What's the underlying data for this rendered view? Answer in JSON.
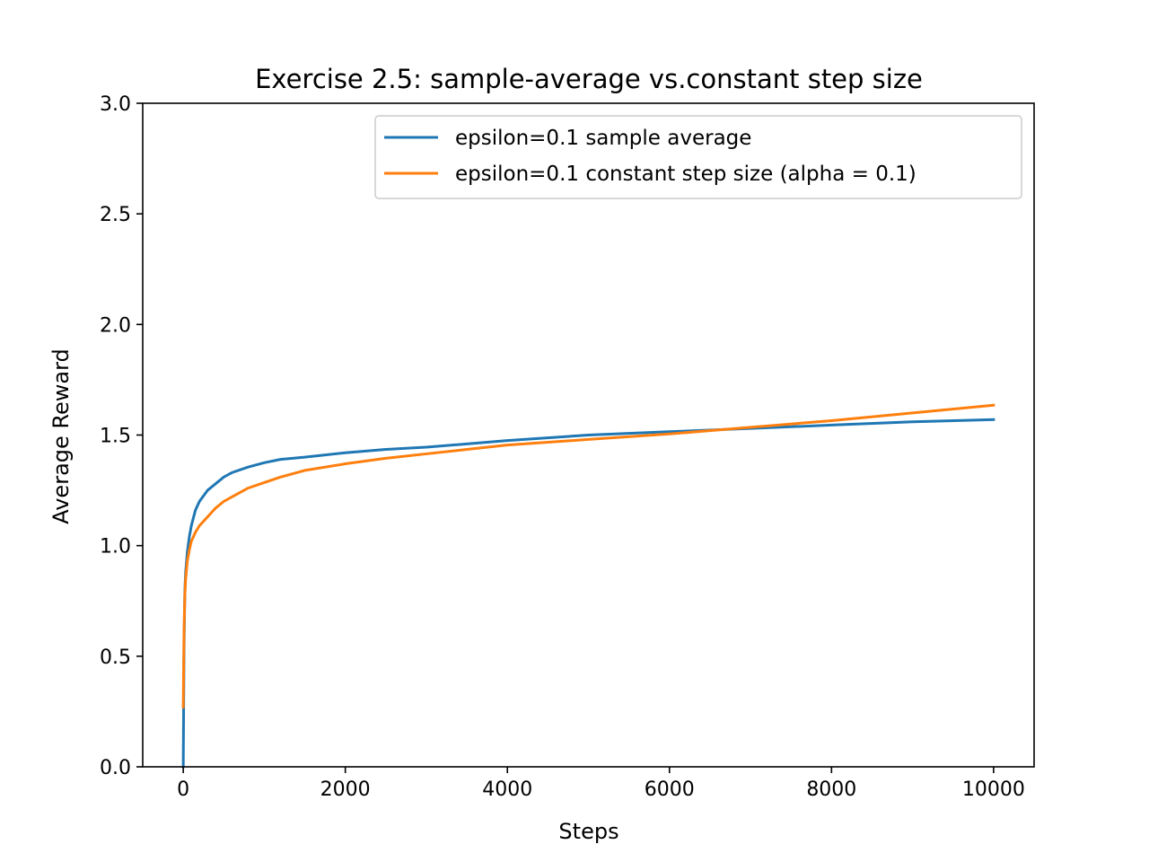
{
  "chart_data": {
    "type": "line",
    "title": "Exercise 2.5: sample-average vs.constant step size",
    "xlabel": "Steps",
    "ylabel": "Average Reward",
    "xlim": [
      -500,
      10500
    ],
    "ylim": [
      0,
      3
    ],
    "xticks": [
      0,
      2000,
      4000,
      6000,
      8000,
      10000
    ],
    "xtick_labels": [
      "0",
      "2000",
      "4000",
      "6000",
      "8000",
      "10000"
    ],
    "yticks": [
      0,
      0.5,
      1,
      1.5,
      2,
      2.5,
      3
    ],
    "ytick_labels": [
      "0.0",
      "0.5",
      "1.0",
      "1.5",
      "2.0",
      "2.5",
      "3.0"
    ],
    "grid": false,
    "legend_position": "upper right",
    "series": [
      {
        "name": "epsilon=0.1 sample average",
        "color": "#1f77b4",
        "x": [
          0,
          5,
          10,
          20,
          30,
          50,
          75,
          100,
          150,
          200,
          300,
          400,
          500,
          600,
          800,
          1000,
          1200,
          1500,
          2000,
          2500,
          3000,
          3500,
          4000,
          5000,
          6000,
          7000,
          8000,
          9000,
          10000
        ],
        "y": [
          0.0,
          0.27,
          0.55,
          0.8,
          0.88,
          0.97,
          1.04,
          1.09,
          1.16,
          1.2,
          1.25,
          1.28,
          1.31,
          1.33,
          1.355,
          1.375,
          1.39,
          1.4,
          1.42,
          1.435,
          1.445,
          1.46,
          1.475,
          1.5,
          1.515,
          1.53,
          1.545,
          1.56,
          1.57
        ]
      },
      {
        "name": "epsilon=0.1 constant step size (alpha = 0.1)",
        "color": "#ff7f0e",
        "x": [
          0,
          5,
          10,
          20,
          30,
          50,
          75,
          100,
          150,
          200,
          300,
          400,
          500,
          600,
          800,
          1000,
          1200,
          1500,
          2000,
          2500,
          3000,
          3500,
          4000,
          5000,
          6000,
          7000,
          8000,
          9000,
          10000
        ],
        "y": [
          0.27,
          0.45,
          0.62,
          0.78,
          0.85,
          0.93,
          0.98,
          1.02,
          1.06,
          1.09,
          1.13,
          1.17,
          1.2,
          1.22,
          1.26,
          1.285,
          1.31,
          1.34,
          1.37,
          1.395,
          1.415,
          1.435,
          1.455,
          1.48,
          1.505,
          1.535,
          1.565,
          1.6,
          1.635
        ]
      }
    ]
  }
}
